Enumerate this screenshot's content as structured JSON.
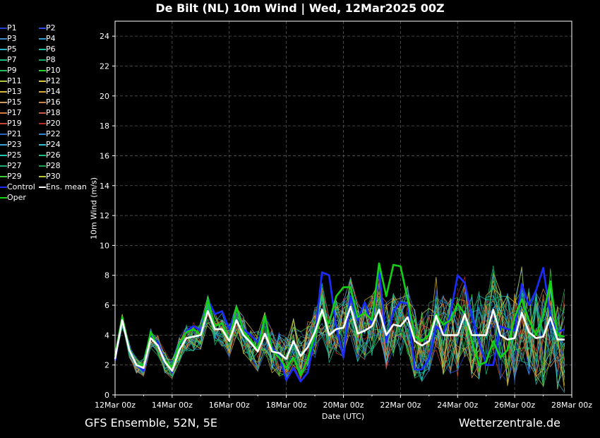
{
  "title": "De Bilt  (NL)  10m Wind | Wed, 12Mar2025 00Z",
  "footer": {
    "left": "GFS Ensemble, 52N, 5E",
    "right": "Wetterzentrale.de"
  },
  "chart_data": {
    "type": "line",
    "title": "De Bilt  (NL)  10m Wind | Wed, 12Mar2025 00Z",
    "xlabel": "Date (UTC)",
    "ylabel": "10m Wind (m/s)",
    "ylim": [
      0,
      25
    ],
    "yticks": [
      "0",
      "2",
      "4",
      "6",
      "8",
      "10",
      "12",
      "14",
      "16",
      "18",
      "20",
      "22",
      "24"
    ],
    "xticks": [
      "12Mar 00z",
      "14Mar 00z",
      "16Mar 00z",
      "18Mar 00z",
      "20Mar 00z",
      "22Mar 00z",
      "24Mar 00z",
      "26Mar 00z",
      "28Mar 00z"
    ],
    "x_start": "12Mar 00z",
    "x_end": "28Mar 00z",
    "x_step": "6h",
    "grid": true,
    "legend_position": "left",
    "legend": [
      {
        "name": "P1",
        "color": "#1b3fd1"
      },
      {
        "name": "P2",
        "color": "#2350e6"
      },
      {
        "name": "P3",
        "color": "#3a86c8"
      },
      {
        "name": "P4",
        "color": "#2f9bd6"
      },
      {
        "name": "P5",
        "color": "#1fb6c9"
      },
      {
        "name": "P6",
        "color": "#17c0a6"
      },
      {
        "name": "P7",
        "color": "#16b986"
      },
      {
        "name": "P8",
        "color": "#15a860"
      },
      {
        "name": "P9",
        "color": "#22c05a"
      },
      {
        "name": "P10",
        "color": "#26d426"
      },
      {
        "name": "P11",
        "color": "#a8c83a"
      },
      {
        "name": "P12",
        "color": "#d9c53a"
      },
      {
        "name": "P13",
        "color": "#d8b834"
      },
      {
        "name": "P14",
        "color": "#dba437"
      },
      {
        "name": "P15",
        "color": "#cf9a5e"
      },
      {
        "name": "P16",
        "color": "#c98245"
      },
      {
        "name": "P17",
        "color": "#d77a3b"
      },
      {
        "name": "P18",
        "color": "#cf5a33"
      },
      {
        "name": "P19",
        "color": "#c9442d"
      },
      {
        "name": "P20",
        "color": "#b82a24"
      },
      {
        "name": "P21",
        "color": "#2a64c4"
      },
      {
        "name": "P22",
        "color": "#2a86d4"
      },
      {
        "name": "P23",
        "color": "#3aa0d8"
      },
      {
        "name": "P24",
        "color": "#2ec0d4"
      },
      {
        "name": "P25",
        "color": "#20c7b0"
      },
      {
        "name": "P26",
        "color": "#18c08e"
      },
      {
        "name": "P27",
        "color": "#1bb072"
      },
      {
        "name": "P28",
        "color": "#16a44c"
      },
      {
        "name": "P29",
        "color": "#3cd13c"
      },
      {
        "name": "P30",
        "color": "#c2c43a"
      },
      {
        "name": "Control",
        "color": "#1a2cff"
      },
      {
        "name": "Ens. mean",
        "color": "#ffffff"
      },
      {
        "name": "Oper",
        "color": "#13d113"
      }
    ],
    "series": [
      {
        "name": "Ens. mean",
        "color": "#ffffff",
        "values": [
          2.4,
          5.0,
          3.0,
          2.0,
          1.8,
          3.8,
          3.3,
          2.2,
          1.6,
          3.0,
          3.8,
          3.9,
          4.0,
          5.6,
          4.4,
          4.4,
          3.6,
          5.0,
          4.0,
          3.5,
          2.9,
          4.1,
          2.9,
          2.8,
          2.4,
          3.6,
          2.6,
          3.2,
          4.2,
          5.7,
          4.0,
          4.4,
          4.5,
          5.9,
          4.1,
          4.3,
          4.6,
          5.7,
          4.0,
          4.7,
          4.6,
          5.2,
          3.6,
          3.3,
          3.6,
          5.3,
          4.0,
          4.0,
          4.0,
          5.4,
          4.0,
          4.0,
          4.0,
          5.7,
          4.0,
          3.7,
          3.8,
          5.5,
          4.2,
          3.8,
          3.9,
          5.2,
          3.7,
          3.7
        ]
      },
      {
        "name": "Oper",
        "color": "#13d113",
        "values": [
          2.6,
          5.2,
          3.1,
          2.0,
          2.0,
          4.2,
          3.2,
          2.3,
          1.8,
          3.4,
          4.2,
          4.4,
          4.0,
          6.4,
          4.6,
          4.8,
          3.6,
          5.9,
          4.2,
          3.7,
          3.0,
          5.3,
          3.0,
          2.5,
          1.8,
          2.5,
          1.3,
          2.4,
          4.0,
          5.4,
          4.8,
          6.6,
          7.2,
          7.2,
          5.2,
          5.5,
          5.0,
          8.8,
          6.6,
          8.7,
          8.6,
          6.4,
          3.9,
          3.6,
          4.0,
          5.4,
          4.7,
          5.0,
          6.1,
          5.4,
          3.6,
          2.0,
          2.2,
          3.6,
          2.5,
          3.0,
          5.2,
          6.4,
          5.0,
          4.0,
          5.3,
          7.6,
          4.0,
          3.9
        ]
      },
      {
        "name": "Control",
        "color": "#1a2cff",
        "values": [
          2.3,
          5.1,
          3.2,
          2.0,
          1.6,
          4.0,
          3.5,
          2.3,
          1.5,
          3.3,
          4.3,
          4.6,
          4.3,
          6.4,
          5.4,
          5.6,
          4.4,
          5.7,
          4.4,
          4.0,
          3.5,
          5.2,
          3.2,
          2.6,
          1.0,
          1.8,
          0.9,
          1.5,
          3.9,
          8.2,
          8.0,
          4.5,
          2.5,
          6.6,
          5.0,
          6.2,
          4.6,
          8.4,
          3.5,
          5.6,
          6.2,
          6.1,
          1.7,
          1.7,
          2.4,
          4.6,
          4.1,
          5.4,
          8.0,
          7.5,
          5.3,
          3.6,
          2.0,
          2.0,
          4.6,
          4.4,
          4.3,
          7.4,
          6.0,
          7.0,
          8.5,
          5.2,
          4.2,
          4.4
        ]
      }
    ]
  }
}
